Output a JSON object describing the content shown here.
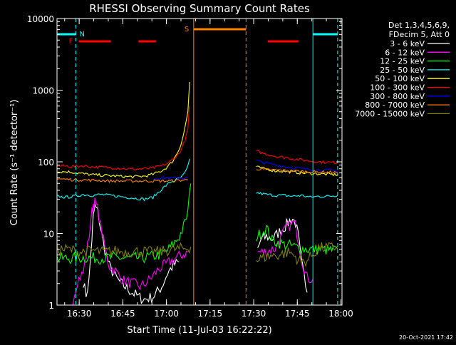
{
  "chart_data": {
    "type": "line",
    "title": "RHESSI Observing Summary Count Rates",
    "xlabel": "Start Time (11-Jul-03 16:22:22)",
    "ylabel": "Count Rate (s⁻¹ detector⁻¹)",
    "y_scale": "log",
    "ylim": [
      1,
      10000
    ],
    "x_units": "minutes after 16:22:22 UT",
    "xlim": [
      0,
      98
    ],
    "grid": false,
    "x_ticks": [
      {
        "t": 7.63,
        "label": "16:30"
      },
      {
        "t": 22.63,
        "label": "16:45"
      },
      {
        "t": 37.63,
        "label": "17:00"
      },
      {
        "t": 52.63,
        "label": "17:15"
      },
      {
        "t": 67.63,
        "label": "17:30"
      },
      {
        "t": 82.63,
        "label": "17:45"
      },
      {
        "t": 97.63,
        "label": "18:00"
      }
    ],
    "y_ticks": [
      {
        "v": 1,
        "label": "1"
      },
      {
        "v": 10,
        "label": "10"
      },
      {
        "v": 100,
        "label": "100"
      },
      {
        "v": 1000,
        "label": "1000"
      },
      {
        "v": 10000,
        "label": "10000"
      }
    ],
    "legend_header": [
      "Det 1,3,4,5,6,9,",
      "FDecim 5, Att 0"
    ],
    "legend_placement": "right",
    "series": [
      {
        "name": "3 - 6 keV",
        "color": "#ffffff",
        "points": [
          [
            9.0,
            2.1
          ],
          [
            10.0,
            1.4
          ],
          [
            11.0,
            2.2
          ],
          [
            12.0,
            8.5
          ],
          [
            12.5,
            17
          ],
          [
            13.0,
            24
          ],
          [
            14.0,
            20
          ],
          [
            15.0,
            12
          ],
          [
            16.0,
            7
          ],
          [
            17.0,
            5
          ],
          [
            18.0,
            3.5
          ],
          [
            20.0,
            2.5
          ],
          [
            22.0,
            2
          ],
          [
            25.0,
            1.6
          ],
          [
            28.0,
            1.3
          ],
          [
            30.0,
            1.2
          ],
          [
            33.0,
            1.3
          ],
          [
            36.0,
            1.8
          ],
          [
            38.0,
            2.8
          ],
          [
            40.0,
            3.6
          ],
          [
            42.0,
            4.0
          ]
        ],
        "points2": [
          [
            69.0,
            6
          ],
          [
            70.0,
            8
          ],
          [
            72.0,
            9
          ],
          [
            74.0,
            8.5
          ],
          [
            76.0,
            10
          ],
          [
            78.0,
            12
          ],
          [
            80.0,
            15
          ],
          [
            81.0,
            16
          ],
          [
            82.0,
            14
          ],
          [
            83.0,
            9
          ],
          [
            84.0,
            4
          ],
          [
            85.0,
            2.5
          ],
          [
            86.0,
            1.5
          ]
        ]
      },
      {
        "name": "6 - 12 keV",
        "color": "#ff00ff",
        "points": [
          [
            5.5,
            1.2
          ],
          [
            7.0,
            2.2
          ],
          [
            9.0,
            2.8
          ],
          [
            11.0,
            9
          ],
          [
            12.0,
            20
          ],
          [
            12.5,
            26
          ],
          [
            13.0,
            27
          ],
          [
            14.0,
            22
          ],
          [
            15.0,
            13
          ],
          [
            16.0,
            8
          ],
          [
            17.0,
            5
          ],
          [
            18.0,
            3.5
          ],
          [
            20.0,
            3
          ],
          [
            23.0,
            2.2
          ],
          [
            26.0,
            2
          ],
          [
            29.0,
            1.8
          ],
          [
            32.0,
            2.3
          ],
          [
            35.0,
            3.2
          ],
          [
            38.0,
            3.8
          ],
          [
            40.0,
            4.3
          ],
          [
            42.0,
            4.8
          ],
          [
            44.0,
            5.2
          ],
          [
            45.0,
            5.5
          ]
        ],
        "points2": [
          [
            69.0,
            5.5
          ],
          [
            71.0,
            5.5
          ],
          [
            73.0,
            5.8
          ],
          [
            75.0,
            6.2
          ],
          [
            77.0,
            9
          ],
          [
            79.0,
            12
          ],
          [
            81.0,
            14
          ],
          [
            82.0,
            13
          ],
          [
            83.0,
            8
          ],
          [
            84.0,
            4.5
          ],
          [
            86.0,
            2.4
          ],
          [
            88.0,
            2.3
          ]
        ]
      },
      {
        "name": "12 - 25 keV",
        "color": "#00ff00",
        "points": [
          [
            0.0,
            4.5
          ],
          [
            5.0,
            4.5
          ],
          [
            10.0,
            4.6
          ],
          [
            15.0,
            4.5
          ],
          [
            20.0,
            4.6
          ],
          [
            25.0,
            4.5
          ],
          [
            30.0,
            4.6
          ],
          [
            35.0,
            5.0
          ],
          [
            38.0,
            5.8
          ],
          [
            40.0,
            7.0
          ],
          [
            42.0,
            9.0
          ],
          [
            43.0,
            11
          ],
          [
            44.0,
            14
          ],
          [
            45.0,
            20
          ],
          [
            46.0,
            50
          ]
        ],
        "points2": [
          [
            68.5,
            9
          ],
          [
            70.0,
            10
          ],
          [
            72.0,
            12
          ],
          [
            74.0,
            8
          ],
          [
            76.0,
            7.5
          ],
          [
            78.0,
            7
          ],
          [
            80.0,
            6.8
          ],
          [
            82.0,
            6.5
          ],
          [
            84.0,
            6.2
          ],
          [
            86.0,
            6
          ],
          [
            88.0,
            6
          ],
          [
            90.0,
            6
          ],
          [
            92.0,
            5.9
          ],
          [
            94.0,
            5.8
          ],
          [
            96.5,
            6
          ]
        ]
      },
      {
        "name": "25 - 50 keV",
        "color": "#00ffff",
        "points": [
          [
            0.0,
            33
          ],
          [
            3.0,
            32
          ],
          [
            6.0,
            33
          ],
          [
            9.0,
            35
          ],
          [
            12.0,
            34
          ],
          [
            15.0,
            35
          ],
          [
            18.0,
            34
          ],
          [
            21.0,
            33
          ],
          [
            24.0,
            32
          ],
          [
            27.0,
            31
          ],
          [
            30.0,
            30
          ],
          [
            33.0,
            32
          ],
          [
            35.0,
            38
          ],
          [
            37.0,
            45
          ],
          [
            39.0,
            52
          ],
          [
            41.0,
            56
          ],
          [
            43.0,
            62
          ],
          [
            44.0,
            70
          ],
          [
            45.0,
            85
          ],
          [
            45.6,
            110
          ]
        ],
        "points2": [
          [
            68.5,
            37
          ],
          [
            70.0,
            36
          ],
          [
            72.0,
            35
          ],
          [
            75.0,
            34
          ],
          [
            78.0,
            34
          ],
          [
            81.0,
            33
          ],
          [
            84.0,
            34
          ],
          [
            87.0,
            32
          ],
          [
            90.0,
            33
          ],
          [
            93.0,
            33
          ],
          [
            96.5,
            34
          ]
        ]
      },
      {
        "name": "50 - 100 keV",
        "color": "#ffff00",
        "points": [
          [
            0.0,
            72
          ],
          [
            3.0,
            73
          ],
          [
            6.0,
            71
          ],
          [
            9.0,
            68
          ],
          [
            12.0,
            66
          ],
          [
            15.0,
            65
          ],
          [
            18.0,
            64
          ],
          [
            21.0,
            63
          ],
          [
            24.0,
            62
          ],
          [
            27.0,
            62
          ],
          [
            30.0,
            63
          ],
          [
            33.0,
            67
          ],
          [
            36.0,
            75
          ],
          [
            38.0,
            85
          ],
          [
            40.0,
            105
          ],
          [
            42.0,
            150
          ],
          [
            43.0,
            200
          ],
          [
            44.0,
            300
          ],
          [
            45.0,
            500
          ],
          [
            45.6,
            1300
          ]
        ],
        "points2": [
          [
            68.5,
            85
          ],
          [
            70.0,
            82
          ],
          [
            72.0,
            79
          ],
          [
            75.0,
            75
          ],
          [
            78.0,
            74
          ],
          [
            81.0,
            72
          ],
          [
            84.0,
            70
          ],
          [
            87.0,
            69
          ],
          [
            90.0,
            68
          ],
          [
            93.0,
            67
          ],
          [
            96.5,
            66
          ]
        ]
      },
      {
        "name": "100 - 300 keV",
        "color": "#ff0000",
        "points": [
          [
            0.0,
            88
          ],
          [
            3.0,
            87
          ],
          [
            6.0,
            86
          ],
          [
            9.0,
            88
          ],
          [
            12.0,
            85
          ],
          [
            15.0,
            84
          ],
          [
            18.0,
            83
          ],
          [
            21.0,
            82
          ],
          [
            24.0,
            80
          ],
          [
            27.0,
            79
          ],
          [
            30.0,
            80
          ],
          [
            33.0,
            82
          ],
          [
            36.0,
            88
          ],
          [
            38.0,
            95
          ],
          [
            40.0,
            110
          ],
          [
            42.0,
            130
          ],
          [
            43.0,
            160
          ],
          [
            44.0,
            200
          ],
          [
            45.0,
            280
          ],
          [
            45.5,
            600
          ]
        ],
        "points2": [
          [
            68.5,
            140
          ],
          [
            70.0,
            135
          ],
          [
            72.0,
            128
          ],
          [
            74.0,
            123
          ],
          [
            76.0,
            118
          ],
          [
            78.0,
            115
          ],
          [
            80.0,
            112
          ],
          [
            82.0,
            109
          ],
          [
            84.0,
            106
          ],
          [
            86.0,
            104
          ],
          [
            88.0,
            102
          ],
          [
            90.0,
            100
          ],
          [
            92.0,
            99
          ],
          [
            94.0,
            98
          ],
          [
            96.5,
            97
          ]
        ]
      },
      {
        "name": "300 - 800 keV",
        "color": "#0000ff",
        "points": [
          [
            33.0,
            58
          ],
          [
            35.0,
            59
          ],
          [
            37.0,
            60
          ],
          [
            39.0,
            59
          ],
          [
            41.0,
            60
          ],
          [
            43.0,
            60
          ],
          [
            45.0,
            59
          ]
        ],
        "points2": [
          [
            68.5,
            105
          ],
          [
            70.0,
            100
          ],
          [
            72.0,
            96
          ],
          [
            74.0,
            92
          ],
          [
            76.0,
            89
          ],
          [
            78.0,
            86
          ],
          [
            80.0,
            84
          ],
          [
            82.0,
            82
          ],
          [
            84.0,
            80
          ],
          [
            86.0,
            79
          ],
          [
            88.0,
            78
          ],
          [
            90.0,
            77
          ],
          [
            92.0,
            76
          ],
          [
            94.0,
            76
          ],
          [
            96.5,
            75
          ]
        ]
      },
      {
        "name": "800 - 7000 keV",
        "color": "#ff8000",
        "points": [
          [
            0.0,
            58
          ],
          [
            3.0,
            57
          ],
          [
            6.0,
            56
          ],
          [
            9.0,
            56
          ],
          [
            12.0,
            55
          ],
          [
            15.0,
            55
          ],
          [
            18.0,
            54
          ],
          [
            21.0,
            54
          ],
          [
            24.0,
            54
          ],
          [
            27.0,
            54
          ],
          [
            30.0,
            54
          ],
          [
            33.0,
            54
          ],
          [
            36.0,
            54
          ],
          [
            39.0,
            54
          ],
          [
            42.0,
            55
          ],
          [
            45.0,
            56
          ]
        ],
        "points2": [
          [
            68.5,
            80
          ],
          [
            71.0,
            78
          ],
          [
            74.0,
            77
          ],
          [
            77.0,
            76
          ],
          [
            80.0,
            75
          ],
          [
            83.0,
            74
          ],
          [
            86.0,
            73
          ],
          [
            89.0,
            72
          ],
          [
            92.0,
            72
          ],
          [
            96.5,
            71
          ]
        ]
      },
      {
        "name": "7000 - 15000 keV",
        "color": "#808000",
        "points": [
          [
            0.0,
            6
          ],
          [
            4.0,
            6
          ],
          [
            8.0,
            5.5
          ],
          [
            12.0,
            5.8
          ],
          [
            16.0,
            5.5
          ],
          [
            20.0,
            5.7
          ],
          [
            24.0,
            5.5
          ],
          [
            28.0,
            5.6
          ],
          [
            32.0,
            5.5
          ],
          [
            36.0,
            5.6
          ],
          [
            40.0,
            6
          ],
          [
            44.0,
            6.2
          ],
          [
            46.0,
            6.5
          ]
        ],
        "points2": [
          [
            68.5,
            4.2
          ],
          [
            72.0,
            4.8
          ],
          [
            76.0,
            5.0
          ],
          [
            80.0,
            5.5
          ],
          [
            84.0,
            4.0
          ],
          [
            86.0,
            4.2
          ],
          [
            90.0,
            6.3
          ],
          [
            93.0,
            6.3
          ],
          [
            96.5,
            6.5
          ]
        ]
      }
    ],
    "flags": {
      "night": {
        "label": "N",
        "color": "#00ffff",
        "intervals": [
          [
            0.0,
            6.5
          ],
          [
            88.0,
            96.5
          ]
        ],
        "lines": [
          {
            "t": 6.5,
            "dashed": true
          },
          {
            "t": 88.0,
            "dashed": false
          },
          {
            "t": 96.5,
            "dashed": true
          }
        ]
      },
      "flare": {
        "label": "F",
        "color": "#ff0000",
        "intervals": [
          [
            7.5,
            18.5
          ],
          [
            28.0,
            34.0
          ],
          [
            72.5,
            83.0
          ]
        ]
      },
      "saa": {
        "label": "S",
        "color": "#ff8000",
        "intervals": [
          [
            47.0,
            65.0
          ]
        ],
        "lines": [
          {
            "t": 47.0,
            "dashed": false
          },
          {
            "t": 65.0,
            "dashed": true
          }
        ]
      }
    }
  },
  "timestamp": "20-Oct-2021 17:42"
}
